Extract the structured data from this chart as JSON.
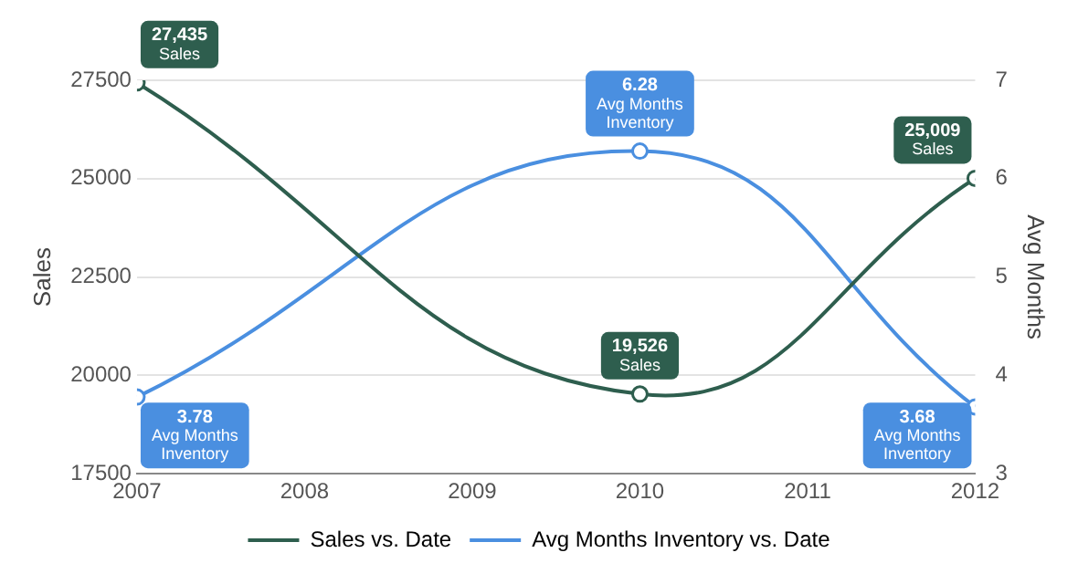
{
  "chart_data": {
    "type": "line",
    "x": [
      2007,
      2010,
      2012
    ],
    "xlim": [
      2007,
      2012
    ],
    "xticks": [
      2007,
      2008,
      2009,
      2010,
      2011,
      2012
    ],
    "ylabel": "Sales",
    "y2label": "Avg Months",
    "ylim": [
      17500,
      27500
    ],
    "yticks": [
      17500,
      20000,
      22500,
      25000,
      27500
    ],
    "y2lim": [
      3,
      7
    ],
    "y2ticks": [
      3,
      4,
      5,
      6,
      7
    ],
    "series": [
      {
        "name": "Sales vs. Date",
        "color": "#2e5e4e",
        "values": [
          27435,
          19526,
          25009
        ],
        "value_labels": [
          "27,435\nSales",
          "19,526\nSales",
          "25,009\nSales"
        ]
      },
      {
        "name": "Avg Months Inventory vs. Date",
        "color": "#4a8fe0",
        "axis": "y2",
        "values": [
          3.78,
          6.28,
          3.68
        ],
        "value_labels": [
          "3.78\nAvg Months\nInventory",
          "6.28\nAvg Months\nInventory",
          "3.68\nAvg Months\nInventory"
        ]
      }
    ],
    "grid": "y",
    "legend": "bottom",
    "marker": "circle",
    "line_style": "solid"
  }
}
